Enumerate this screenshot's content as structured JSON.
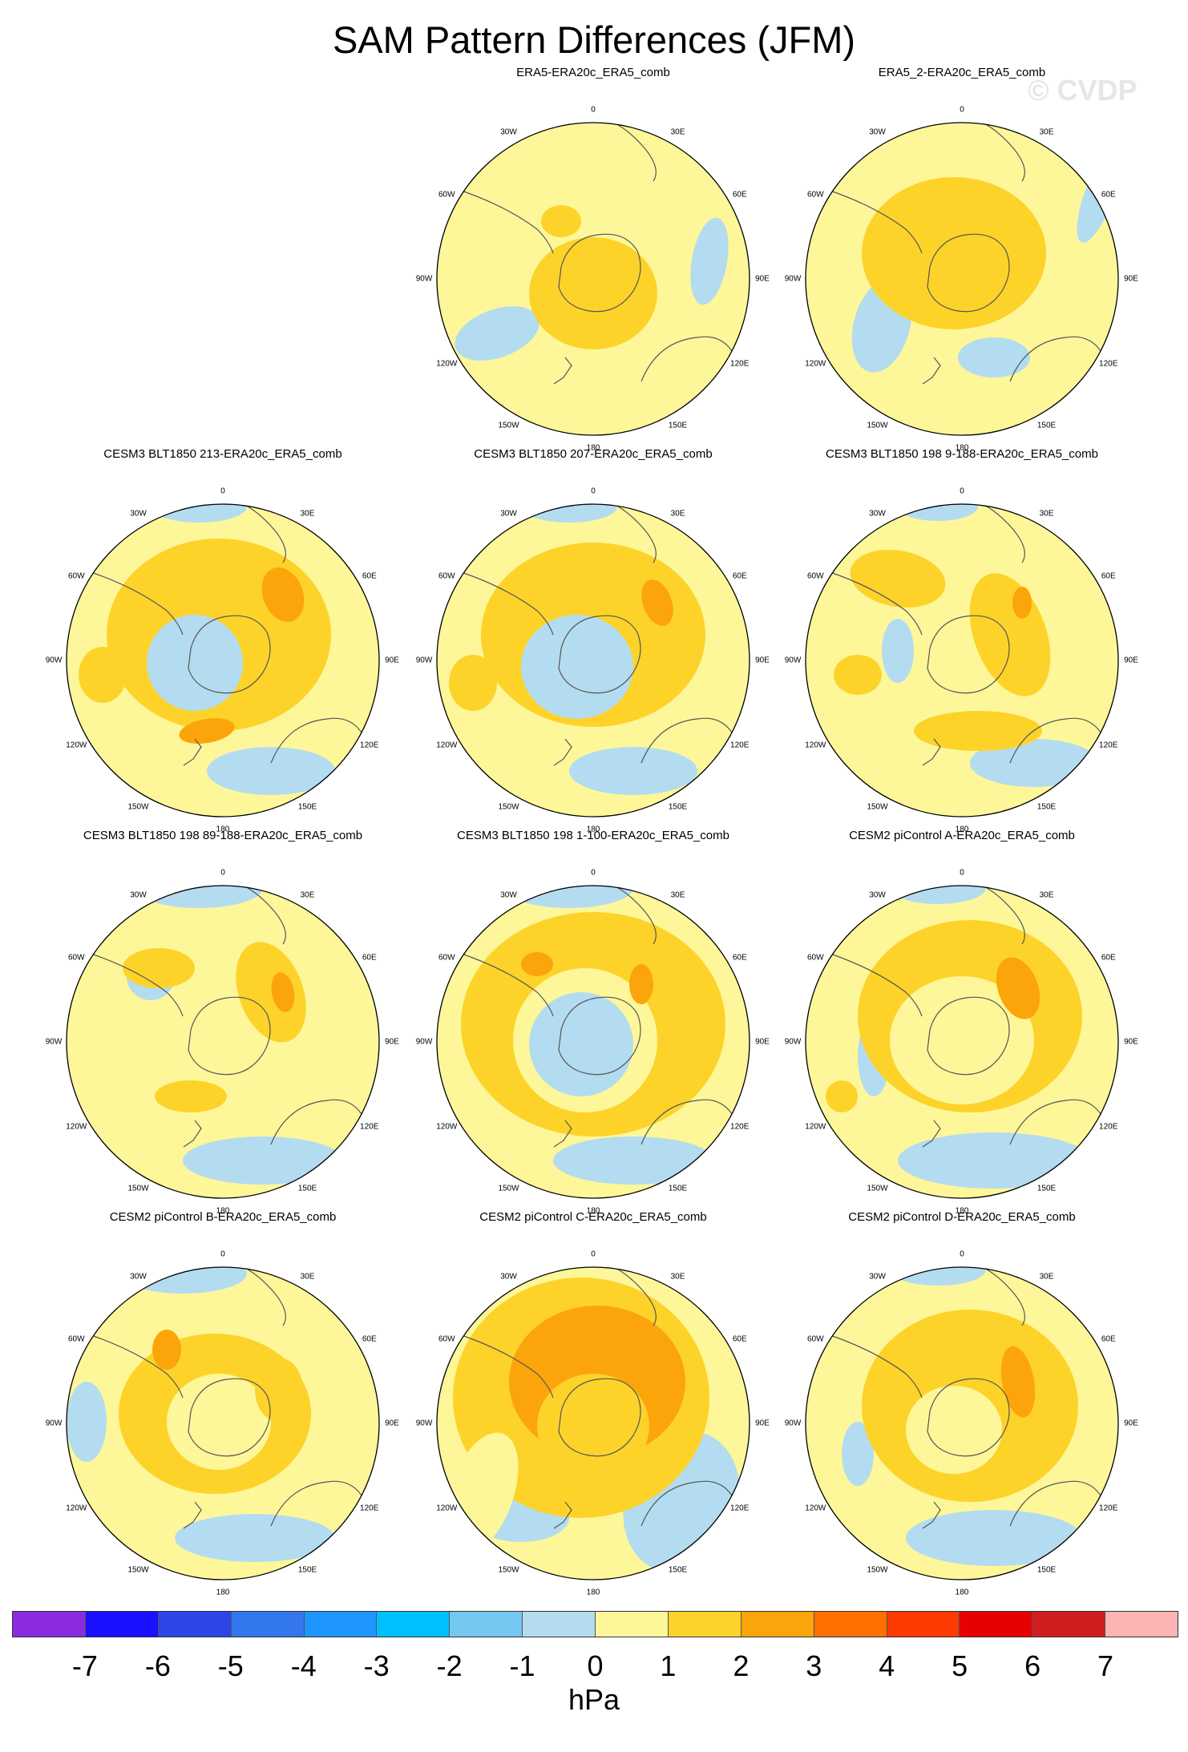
{
  "title": "SAM Pattern Differences (JFM)",
  "watermark": "© CVDP",
  "lon_labels": [
    "0",
    "30E",
    "60E",
    "90E",
    "120E",
    "150E",
    "180",
    "150W",
    "120W",
    "90W",
    "60W",
    "30W"
  ],
  "panels": [
    {
      "title": "ERA5-ERA20c_ERA5_comb"
    },
    {
      "title": "ERA5_2-ERA20c_ERA5_comb"
    },
    {
      "title": "CESM3 BLT1850 213-ERA20c_ERA5_comb"
    },
    {
      "title": "CESM3 BLT1850 207-ERA20c_ERA5_comb"
    },
    {
      "title": "CESM3 BLT1850 198 9-188-ERA20c_ERA5_comb"
    },
    {
      "title": "CESM3 BLT1850 198 89-188-ERA20c_ERA5_comb"
    },
    {
      "title": "CESM3 BLT1850 198 1-100-ERA20c_ERA5_comb"
    },
    {
      "title": "CESM2 piControl A-ERA20c_ERA5_comb"
    },
    {
      "title": "CESM2 piControl B-ERA20c_ERA5_comb"
    },
    {
      "title": "CESM2 piControl C-ERA20c_ERA5_comb"
    },
    {
      "title": "CESM2 piControl D-ERA20c_ERA5_comb"
    }
  ],
  "colorbar": {
    "colors": [
      "#8a2be2",
      "#1a10ff",
      "#2c45e6",
      "#3377ee",
      "#1e96ff",
      "#00bfff",
      "#74c8f2",
      "#b4dcf0",
      "#fdf79a",
      "#fdd32a",
      "#fca50a",
      "#fd7000",
      "#fe3a00",
      "#e60000",
      "#d01e1e",
      "#fdb4b4"
    ],
    "ticks": [
      "-7",
      "-6",
      "-5",
      "-4",
      "-3",
      "-2",
      "-1",
      "0",
      "1",
      "2",
      "3",
      "4",
      "5",
      "6",
      "7"
    ],
    "units": "hPa"
  },
  "palette": {
    "pos1": "#fdf79a",
    "pos2": "#fdd32a",
    "pos3": "#fca50a",
    "neg1": "#b4dcf0",
    "neg2": "#74c8f2"
  }
}
